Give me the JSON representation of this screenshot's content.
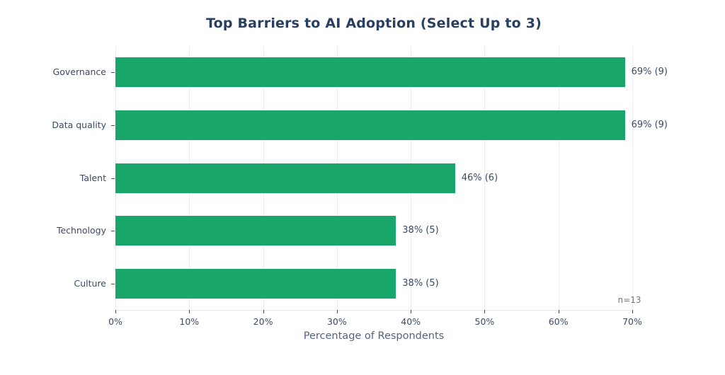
{
  "chart_data": {
    "type": "bar",
    "orientation": "horizontal",
    "title": "Top Barriers to AI Adoption (Select Up to 3)",
    "categories": [
      "Governance",
      "Data quality",
      "Talent",
      "Technology",
      "Culture"
    ],
    "values": [
      69,
      69,
      46,
      38,
      38
    ],
    "counts": [
      9,
      9,
      6,
      5,
      5
    ],
    "bar_labels": [
      "69% (9)",
      "69% (9)",
      "46% (6)",
      "38% (5)",
      "38% (5)"
    ],
    "xlabel": "Percentage of Respondents",
    "ylabel": "",
    "xlim": [
      0,
      70
    ],
    "x_tick_values": [
      0,
      10,
      20,
      30,
      40,
      50,
      60,
      70
    ],
    "x_tick_labels": [
      "0%",
      "10%",
      "20%",
      "30%",
      "40%",
      "50%",
      "60%",
      "70%"
    ],
    "annotation": "n=13",
    "grid": "vertical-on",
    "legend": "none",
    "bar_color": "#18a66b",
    "title_color": "#2a3f5f",
    "label_color": "#3c4a63",
    "background_color": "#ffffff"
  }
}
